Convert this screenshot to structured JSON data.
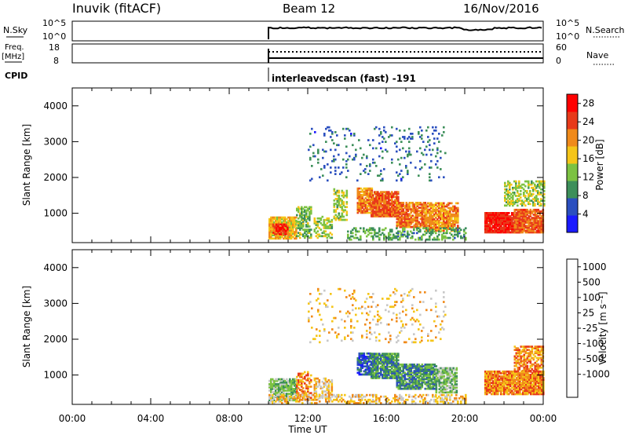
{
  "header": {
    "station": "Inuvik (fitACF)",
    "beam": "Beam 12",
    "date": "16/Nov/2016"
  },
  "strip_panels": {
    "nsky": {
      "label": "N.Sky",
      "ticks": [
        "10^5",
        "10^0"
      ]
    },
    "nsearch": {
      "label": "N.Search",
      "ticks": [
        "10^5",
        "10^0"
      ]
    },
    "freq": {
      "label_line1": "Freq.",
      "label_line2": "[MHz]",
      "ticks": [
        "18",
        "8"
      ]
    },
    "nave": {
      "label": "Nave",
      "ticks": [
        "60",
        "0"
      ]
    },
    "cpid": {
      "label": "CPID",
      "text": "interleavedscan (fast) -191"
    }
  },
  "chart_data": [
    {
      "type": "heatmap",
      "name": "power",
      "ylabel": "Slant Range [km]",
      "ylim": [
        180,
        4500
      ],
      "yticks": [
        1000,
        2000,
        3000,
        4000
      ],
      "xlim": [
        0,
        24
      ],
      "colorbar": {
        "label": "Power [dB]",
        "ticks": [
          4,
          8,
          12,
          16,
          20,
          24,
          28
        ],
        "range": [
          0,
          30
        ]
      },
      "colors": [
        "#1a1aff",
        "#2b4fbf",
        "#3d8f5a",
        "#7cc242",
        "#f5c518",
        "#f08a1a",
        "#e83a1a",
        "#ff0000"
      ],
      "blobs": [
        {
          "t": [
            10.0,
            11.4
          ],
          "r": [
            280,
            900
          ],
          "v": 18,
          "d": 0.9
        },
        {
          "t": [
            10.2,
            11.0
          ],
          "r": [
            400,
            700
          ],
          "v": 27,
          "d": 0.7
        },
        {
          "t": [
            11.4,
            12.2
          ],
          "r": [
            300,
            1200
          ],
          "v": 12,
          "d": 0.55
        },
        {
          "t": [
            12.3,
            13.2
          ],
          "r": [
            300,
            900
          ],
          "v": 14,
          "d": 0.5
        },
        {
          "t": [
            13.3,
            14.0
          ],
          "r": [
            800,
            1700
          ],
          "v": 14,
          "d": 0.5
        },
        {
          "t": [
            14.5,
            15.3
          ],
          "r": [
            1000,
            1700
          ],
          "v": 22,
          "d": 0.85
        },
        {
          "t": [
            15.2,
            16.6
          ],
          "r": [
            900,
            1600
          ],
          "v": 24,
          "d": 0.9
        },
        {
          "t": [
            16.5,
            18.0
          ],
          "r": [
            600,
            1300
          ],
          "v": 22,
          "d": 0.85
        },
        {
          "t": [
            18.0,
            19.6
          ],
          "r": [
            500,
            1300
          ],
          "v": 21,
          "d": 0.8
        },
        {
          "t": [
            14.0,
            20.0
          ],
          "r": [
            250,
            600
          ],
          "v": 10,
          "d": 0.35
        },
        {
          "t": [
            21.0,
            22.8
          ],
          "r": [
            450,
            1000
          ],
          "v": 28,
          "d": 0.95
        },
        {
          "t": [
            22.5,
            24.0
          ],
          "r": [
            450,
            1100
          ],
          "v": 24,
          "d": 0.9
        },
        {
          "t": [
            22.0,
            24.0
          ],
          "r": [
            1200,
            1900
          ],
          "v": 14,
          "d": 0.5
        },
        {
          "t": [
            12.0,
            19.0
          ],
          "r": [
            1900,
            3400
          ],
          "v": 6,
          "d": 0.08
        }
      ]
    },
    {
      "type": "heatmap",
      "name": "velocity",
      "ylabel": "Slant Range [km]",
      "ylim": [
        180,
        4500
      ],
      "yticks": [
        1000,
        2000,
        3000,
        4000
      ],
      "xlim": [
        0,
        24
      ],
      "xticks": [
        "00:00",
        "04:00",
        "08:00",
        "12:00",
        "16:00",
        "20:00",
        "00:00"
      ],
      "xlabel": "Time UT",
      "colorbar": {
        "label": "Velocity [m s⁻¹]",
        "ticks": [
          "1000",
          "500",
          "100",
          "25",
          "-25",
          "-100",
          "-500",
          "-1000"
        ]
      },
      "colors": [
        "#1a1aff",
        "#2b4fbf",
        "#3d8f5a",
        "#7cc242",
        "#c8c8c8",
        "#f5c518",
        "#f08a1a",
        "#e83a1a",
        "#ff0000"
      ],
      "blobs": [
        {
          "t": [
            10.0,
            11.4
          ],
          "r": [
            280,
            900
          ],
          "v": 3,
          "d": 0.85
        },
        {
          "t": [
            11.4,
            12.2
          ],
          "r": [
            300,
            1100
          ],
          "v": 6,
          "d": 0.5
        },
        {
          "t": [
            12.3,
            13.2
          ],
          "r": [
            300,
            900
          ],
          "v": 5,
          "d": 0.5
        },
        {
          "t": [
            14.5,
            15.2
          ],
          "r": [
            1000,
            1600
          ],
          "v": 1,
          "d": 0.8
        },
        {
          "t": [
            15.2,
            16.6
          ],
          "r": [
            900,
            1600
          ],
          "v": 2,
          "d": 0.85
        },
        {
          "t": [
            16.5,
            18.5
          ],
          "r": [
            600,
            1300
          ],
          "v": 2,
          "d": 0.8
        },
        {
          "t": [
            18.5,
            19.6
          ],
          "r": [
            500,
            1200
          ],
          "v": 3,
          "d": 0.75
        },
        {
          "t": [
            21.0,
            24.0
          ],
          "r": [
            450,
            1100
          ],
          "v": 6,
          "d": 0.9
        },
        {
          "t": [
            22.5,
            24.0
          ],
          "r": [
            1100,
            1800
          ],
          "v": 6,
          "d": 0.6
        },
        {
          "t": [
            10.0,
            20.0
          ],
          "r": [
            200,
            450
          ],
          "v": 5,
          "d": 0.35
        },
        {
          "t": [
            12.0,
            19.0
          ],
          "r": [
            1900,
            3400
          ],
          "v": 5,
          "d": 0.08
        }
      ]
    }
  ]
}
